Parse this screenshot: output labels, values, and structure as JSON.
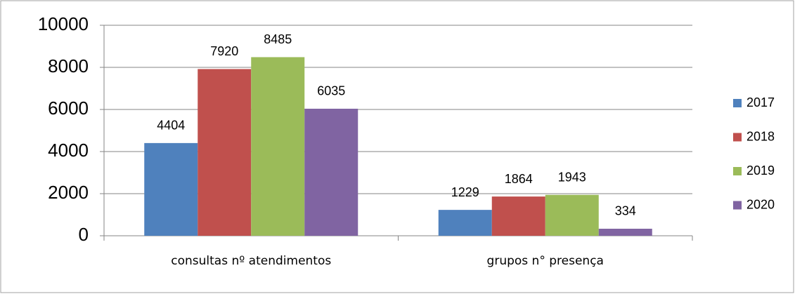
{
  "chart_data": {
    "type": "bar",
    "categories": [
      "consultas nº atendimentos",
      "grupos n° presença"
    ],
    "series": [
      {
        "name": "2017",
        "color": "#4f81bd",
        "values": [
          4404,
          1229
        ]
      },
      {
        "name": "2018",
        "color": "#c0504d",
        "values": [
          7920,
          1864
        ]
      },
      {
        "name": "2019",
        "color": "#9bbb59",
        "values": [
          8485,
          1943
        ]
      },
      {
        "name": "2020",
        "color": "#8064a2",
        "values": [
          6035,
          334
        ]
      }
    ],
    "ylim": [
      0,
      10000
    ],
    "yticks": [
      0,
      2000,
      4000,
      6000,
      8000,
      10000
    ],
    "grid": true,
    "legend": "right"
  }
}
